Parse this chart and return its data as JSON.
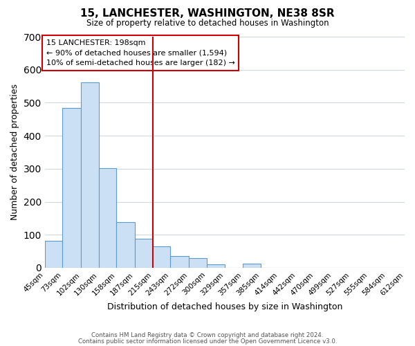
{
  "title": "15, LANCHESTER, WASHINGTON, NE38 8SR",
  "subtitle": "Size of property relative to detached houses in Washington",
  "xlabel": "Distribution of detached houses by size in Washington",
  "ylabel": "Number of detached properties",
  "bar_color": "#cce0f5",
  "bar_edge_color": "#5b9bd5",
  "bin_edges": [
    45,
    73,
    102,
    130,
    158,
    187,
    215,
    243,
    272,
    300,
    329,
    357,
    385,
    414,
    442,
    470,
    499,
    527,
    555,
    584,
    612
  ],
  "bin_labels": [
    "45sqm",
    "73sqm",
    "102sqm",
    "130sqm",
    "158sqm",
    "187sqm",
    "215sqm",
    "243sqm",
    "272sqm",
    "300sqm",
    "329sqm",
    "357sqm",
    "385sqm",
    "414sqm",
    "442sqm",
    "470sqm",
    "499sqm",
    "527sqm",
    "555sqm",
    "584sqm",
    "612sqm"
  ],
  "counts": [
    82,
    484,
    562,
    302,
    138,
    88,
    65,
    35,
    30,
    11,
    0,
    12,
    0,
    0,
    0,
    0,
    0,
    0,
    0,
    0
  ],
  "vline_x": 215,
  "vline_color": "#cc0000",
  "ylim": [
    0,
    700
  ],
  "yticks": [
    0,
    100,
    200,
    300,
    400,
    500,
    600,
    700
  ],
  "annotation_title": "15 LANCHESTER: 198sqm",
  "annotation_line1": "← 90% of detached houses are smaller (1,594)",
  "annotation_line2": "10% of semi-detached houses are larger (182) →",
  "annotation_box_color": "#cc0000",
  "footer_line1": "Contains HM Land Registry data © Crown copyright and database right 2024.",
  "footer_line2": "Contains public sector information licensed under the Open Government Licence v3.0."
}
